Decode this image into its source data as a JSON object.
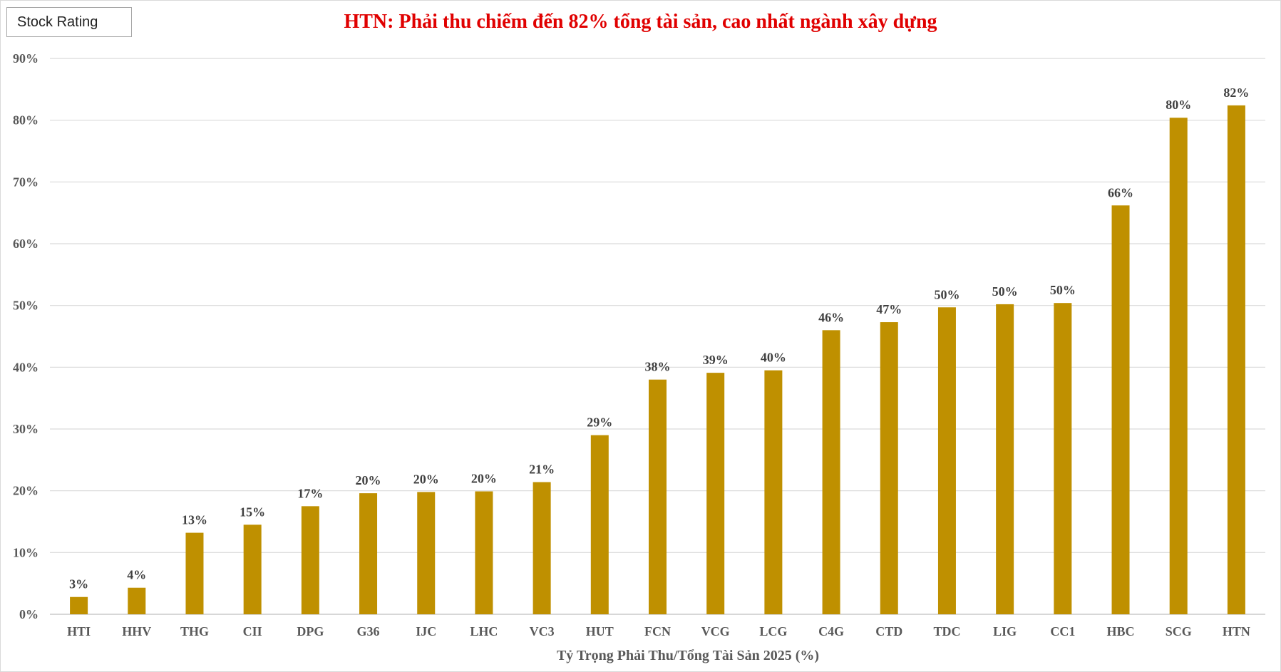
{
  "badge": "Stock Rating",
  "chart_data": {
    "type": "bar",
    "title": "HTN: Phải thu chiếm đến 82% tổng tài sản, cao nhất ngành xây dựng",
    "xlabel": "Tỷ Trọng Phải Thu/Tổng Tài Sản 2025 (%)",
    "ylabel": "",
    "ylim": [
      0,
      90
    ],
    "yticks": [
      "0%",
      "10%",
      "20%",
      "30%",
      "40%",
      "50%",
      "60%",
      "70%",
      "80%",
      "90%"
    ],
    "categories": [
      "HTI",
      "HHV",
      "THG",
      "CII",
      "DPG",
      "G36",
      "IJC",
      "LHC",
      "VC3",
      "HUT",
      "FCN",
      "VCG",
      "LCG",
      "C4G",
      "CTD",
      "TDC",
      "LIG",
      "CC1",
      "HBC",
      "SCG",
      "HTN"
    ],
    "values": [
      2.8,
      4.3,
      13.2,
      14.5,
      17.5,
      19.6,
      19.8,
      19.9,
      21.4,
      29.0,
      38.0,
      39.1,
      39.5,
      46.0,
      47.3,
      49.7,
      50.2,
      50.4,
      66.2,
      80.4,
      82.4
    ],
    "data_labels": [
      "3%",
      "4%",
      "13%",
      "15%",
      "17%",
      "20%",
      "20%",
      "20%",
      "21%",
      "29%",
      "38%",
      "39%",
      "40%",
      "46%",
      "47%",
      "50%",
      "50%",
      "50%",
      "66%",
      "80%",
      "82%"
    ],
    "grid": true,
    "legend": "none",
    "bar_color": "#bf9000"
  }
}
